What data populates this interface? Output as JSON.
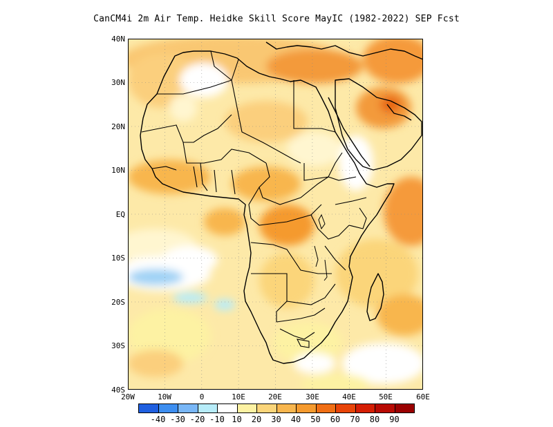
{
  "title": "CanCM4i 2m Air Temp. Heidke Skill Score MayIC (1982-2022) SEP Fcst",
  "map": {
    "lon_range": [
      -20,
      60
    ],
    "lat_range": [
      -40,
      40
    ],
    "lon_ticks": [
      "20W",
      "10W",
      "0",
      "10E",
      "20E",
      "30E",
      "40E",
      "50E",
      "60E"
    ],
    "lat_ticks": [
      "40N",
      "30N",
      "20N",
      "10N",
      "EQ",
      "10S",
      "20S",
      "30S",
      "40S"
    ]
  },
  "colorbar": {
    "colors": [
      "#1f5fe0",
      "#3d8ef0",
      "#79b7f7",
      "#b7ecf9",
      "#ffffff",
      "#fdf2a3",
      "#fbd57a",
      "#f8b64e",
      "#f59a2e",
      "#f06e14",
      "#e84408",
      "#d51e04",
      "#b80a03",
      "#9a0000"
    ],
    "labels": [
      "-40",
      "-30",
      "-20",
      "-10",
      "10",
      "20",
      "30",
      "40",
      "50",
      "60",
      "70",
      "80",
      "90"
    ]
  }
}
